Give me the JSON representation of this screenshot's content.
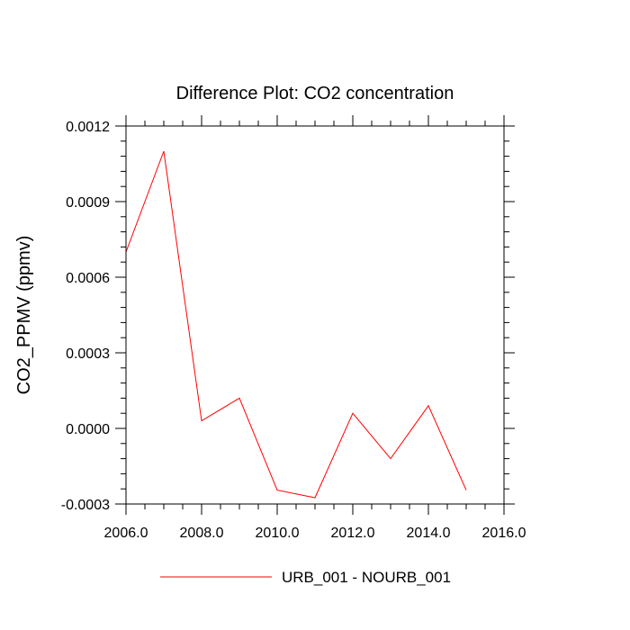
{
  "chart_data": {
    "type": "line",
    "title": "Difference Plot: CO2 concentration",
    "xlabel": "",
    "ylabel": "CO2_PPMV  (ppmv)",
    "xlim": [
      2006,
      2016
    ],
    "ylim": [
      -0.0003,
      0.0012
    ],
    "x_ticks": [
      "2006.0",
      "2008.0",
      "2010.0",
      "2012.0",
      "2014.0",
      "2016.0"
    ],
    "y_ticks": [
      "0.0012",
      "0.0009",
      "0.0006",
      "0.0003",
      "0.0000",
      "-0.0003"
    ],
    "grid": false,
    "legend_position": "bottom",
    "series": [
      {
        "name": "URB_001 - NOURB_001",
        "color": "#ff0000",
        "x": [
          2006,
          2007,
          2008,
          2009,
          2010,
          2011,
          2012,
          2013,
          2014,
          2015
        ],
        "y": [
          0.0007,
          0.0011,
          3e-05,
          0.00012,
          -0.000245,
          -0.000275,
          6e-05,
          -0.00012,
          9e-05,
          -0.000245
        ]
      }
    ]
  }
}
